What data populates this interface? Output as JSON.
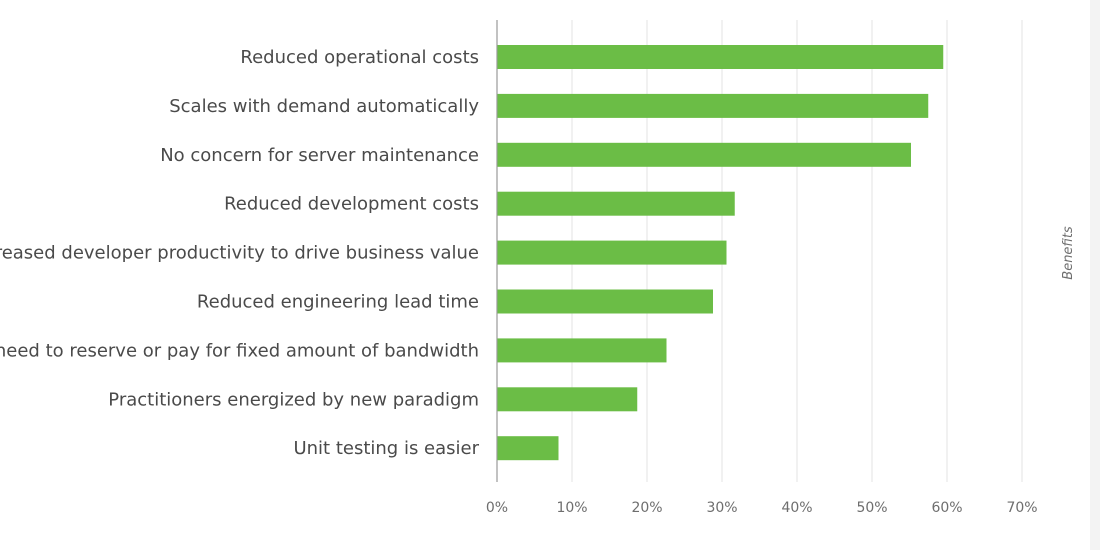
{
  "chart_data": {
    "type": "bar",
    "orientation": "horizontal",
    "categories": [
      "Reduced operational costs",
      "Scales with demand automatically",
      "No concern for server maintenance",
      "Reduced development costs",
      "Increased developer productivity to drive business value",
      "Reduced engineering lead time",
      "No need to reserve or pay for fixed amount of bandwidth",
      "Practitioners energized by new paradigm",
      "Unit testing is easier"
    ],
    "values": [
      59.5,
      57.5,
      55.2,
      31.7,
      30.6,
      28.8,
      22.6,
      18.7,
      8.2
    ],
    "value_unit": "%",
    "xlim": [
      0,
      70
    ],
    "x_ticks": [
      0,
      10,
      20,
      30,
      40,
      50,
      60,
      70
    ],
    "x_tick_labels": [
      "0%",
      "10%",
      "20%",
      "30%",
      "40%",
      "50%",
      "60%",
      "70%"
    ],
    "legend_label": "Benefits",
    "legend_placement": "right",
    "bar_color": "#6bbd46",
    "grid": true,
    "grid_color": "#e3e3e3",
    "axis_color": "#9a9a9a",
    "label_color": "#4a4a4a",
    "tick_color": "#6e6e6e"
  }
}
